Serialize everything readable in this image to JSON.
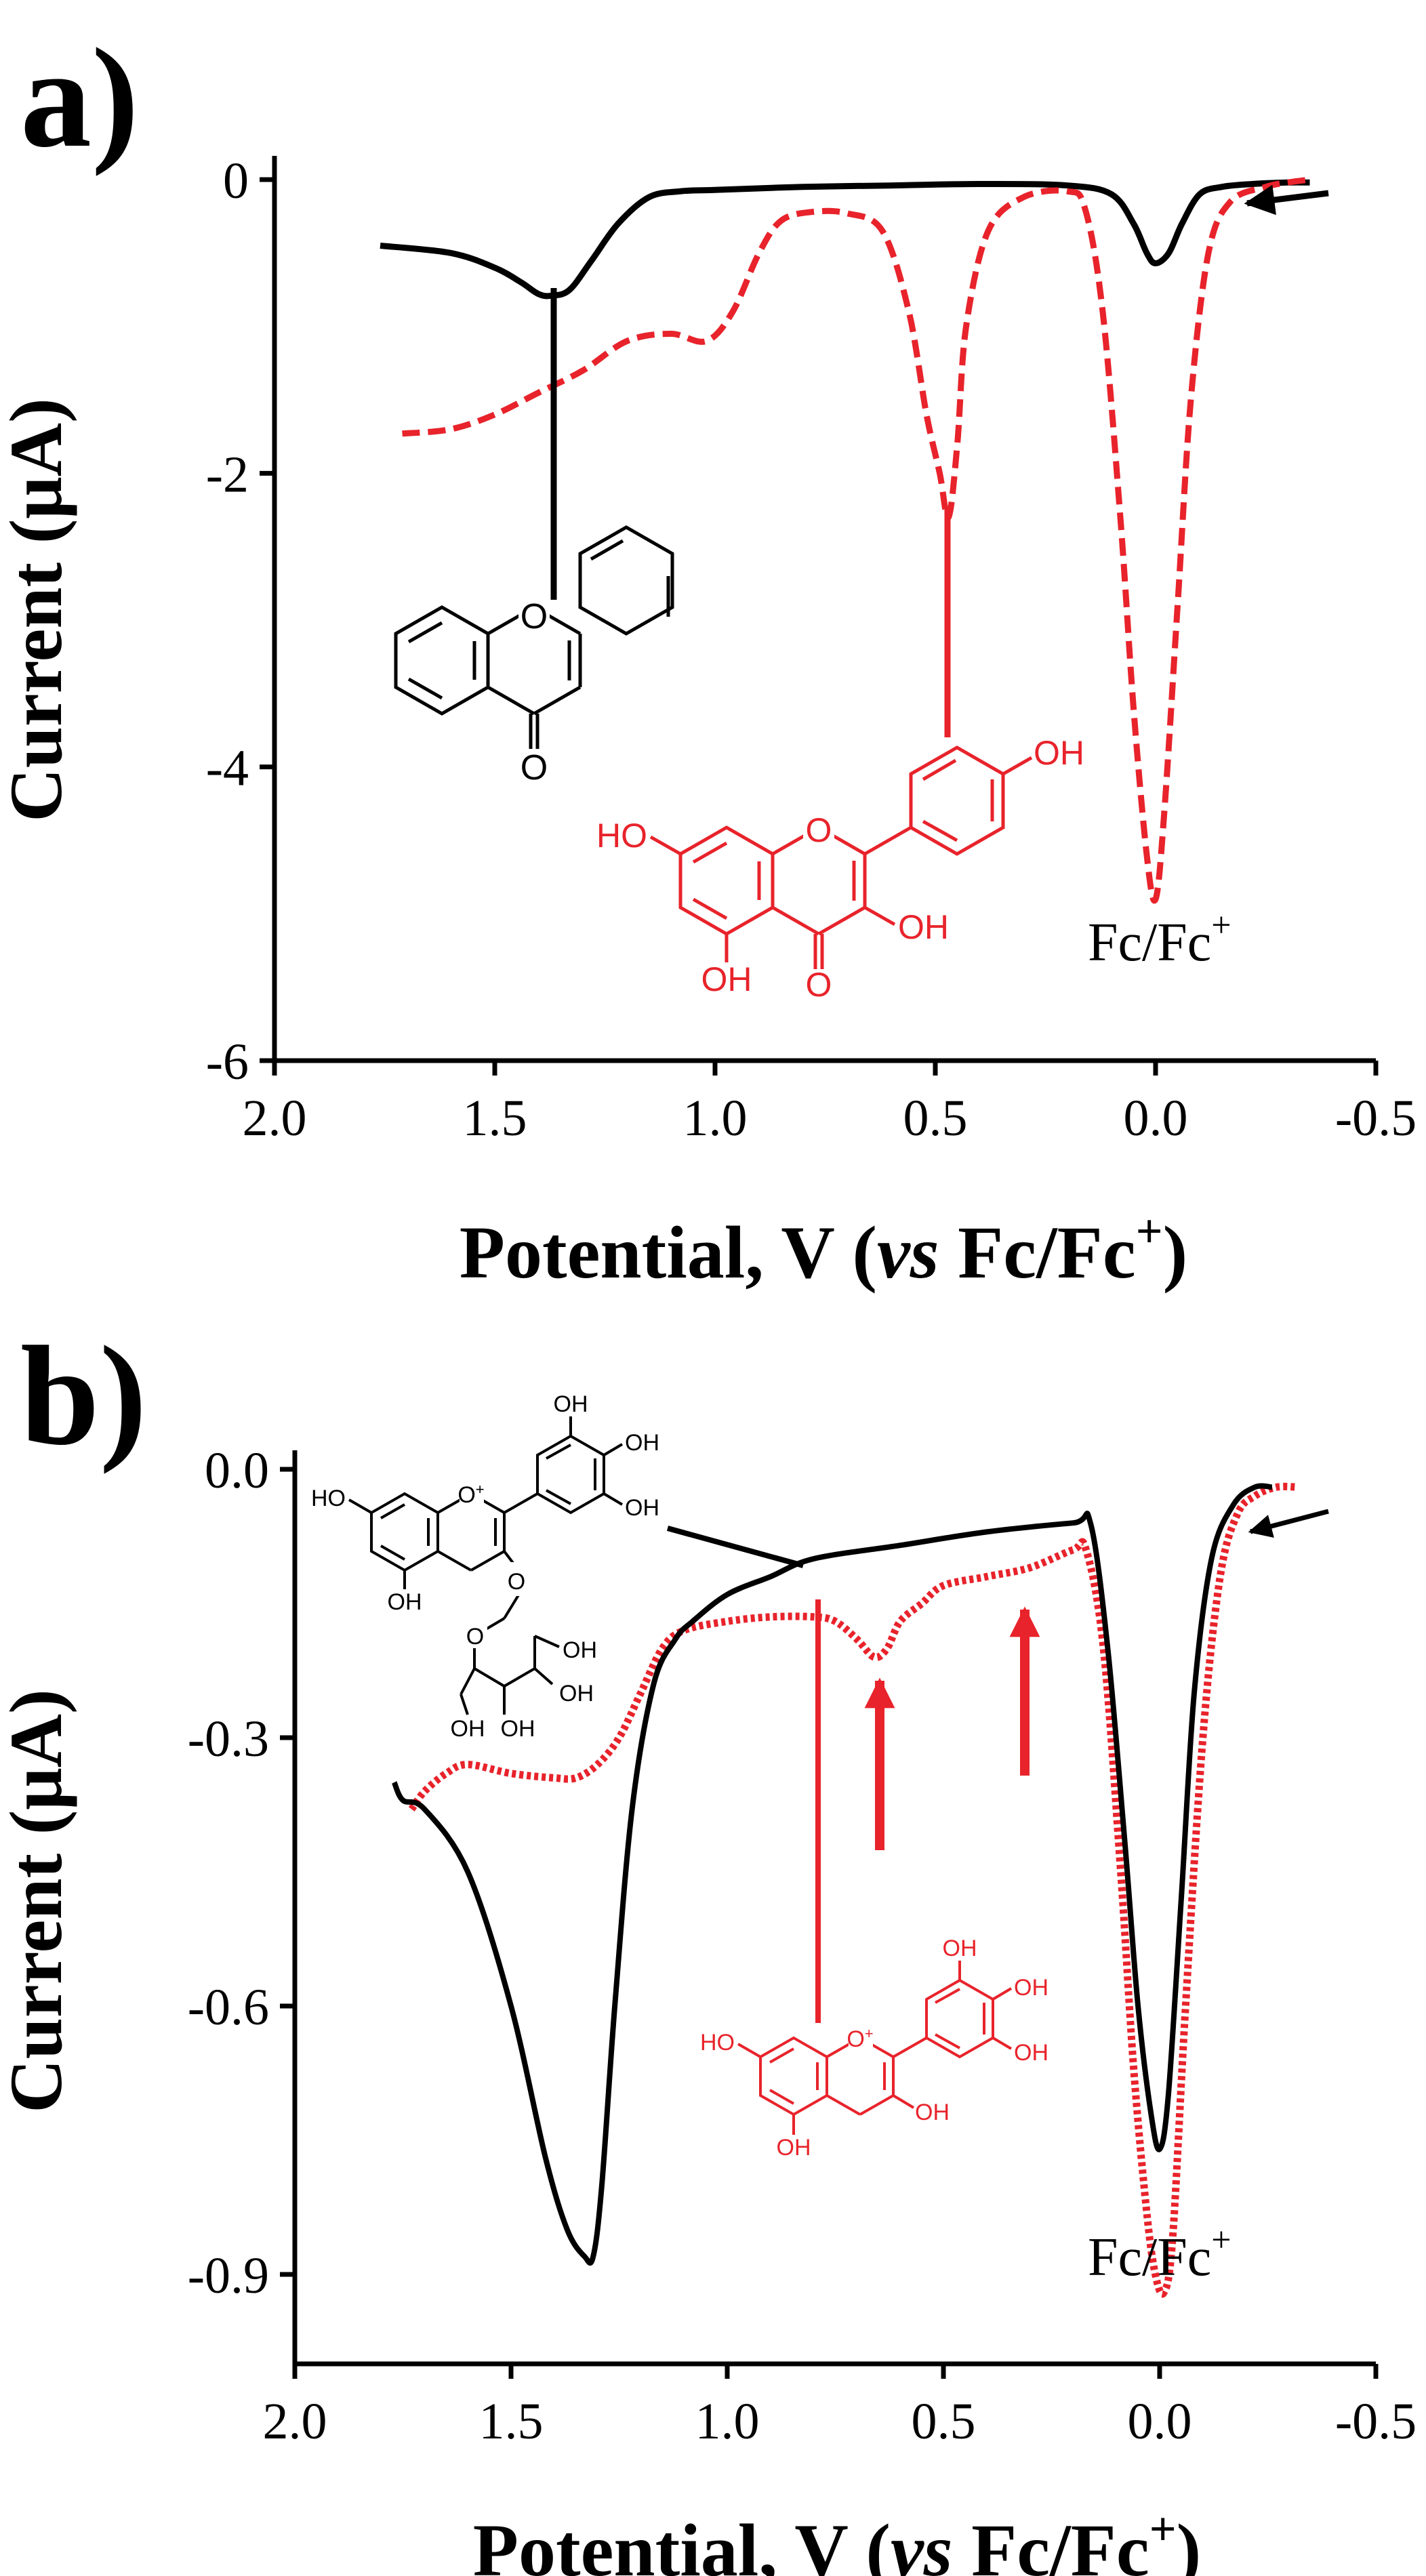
{
  "colors": {
    "black": "#000000",
    "red": "#e8232b"
  },
  "chart_data": [
    {
      "type": "line",
      "panel_label": "a)",
      "xlabel_main": "Potential, V (",
      "xlabel_italic": "vs",
      "xlabel_tail": " Fc/Fc",
      "xlabel_sup": "+",
      "xlabel_close": ")",
      "ylabel": "Current (μA)",
      "xlim": [
        2.0,
        -0.5
      ],
      "ylim": [
        -6,
        0
      ],
      "x_ticks": [
        2.0,
        1.5,
        1.0,
        0.5,
        0.0,
        -0.5
      ],
      "x_tick_labels": [
        "2.0",
        "1.5",
        "1.0",
        "0.5",
        "0.0",
        "-0.5"
      ],
      "y_ticks": [
        0,
        -2,
        -4,
        -6
      ],
      "y_tick_labels": [
        "0",
        "-2",
        "-4",
        "-6"
      ],
      "annotation": "Fc/Fc",
      "annotation_sup": "+",
      "series": [
        {
          "style": "solid",
          "color": "#000000",
          "x": [
            1.76,
            1.6,
            1.5,
            1.44,
            1.4,
            1.37,
            1.33,
            1.28,
            1.22,
            1.15,
            1.08,
            1.0,
            0.8,
            0.6,
            0.4,
            0.2,
            0.1,
            0.05,
            0.02,
            0.0,
            -0.03,
            -0.06,
            -0.1,
            -0.15,
            -0.22,
            -0.3,
            -0.35
          ],
          "y": [
            -0.45,
            -0.5,
            -0.6,
            -0.7,
            -0.78,
            -0.79,
            -0.75,
            -0.55,
            -0.3,
            -0.12,
            -0.08,
            -0.07,
            -0.05,
            -0.04,
            -0.03,
            -0.04,
            -0.1,
            -0.3,
            -0.5,
            -0.57,
            -0.5,
            -0.3,
            -0.1,
            -0.05,
            -0.03,
            -0.02,
            -0.02
          ]
        },
        {
          "style": "dashed",
          "color": "#e8232b",
          "x": [
            1.71,
            1.6,
            1.5,
            1.4,
            1.3,
            1.2,
            1.1,
            1.02,
            0.96,
            0.9,
            0.85,
            0.78,
            0.7,
            0.62,
            0.56,
            0.52,
            0.49,
            0.47,
            0.45,
            0.43,
            0.38,
            0.3,
            0.2,
            0.16,
            0.12,
            0.08,
            0.05,
            0.02,
            0.0,
            -0.02,
            -0.05,
            -0.08,
            -0.12,
            -0.17,
            -0.25,
            -0.3,
            -0.35
          ],
          "y": [
            -1.73,
            -1.7,
            -1.6,
            -1.45,
            -1.3,
            -1.1,
            -1.05,
            -1.1,
            -0.9,
            -0.5,
            -0.28,
            -0.22,
            -0.23,
            -0.35,
            -0.9,
            -1.6,
            -2.0,
            -2.3,
            -1.8,
            -1.0,
            -0.35,
            -0.12,
            -0.08,
            -0.2,
            -0.9,
            -2.3,
            -3.6,
            -4.6,
            -4.9,
            -4.3,
            -2.9,
            -1.5,
            -0.5,
            -0.15,
            -0.05,
            -0.02,
            0.0
          ]
        }
      ]
    },
    {
      "type": "line",
      "panel_label": "b)",
      "xlabel_main": "Potential, V (",
      "xlabel_italic": "vs",
      "xlabel_tail": " Fc/Fc",
      "xlabel_sup": "+",
      "xlabel_close": ")",
      "ylabel": "Current (μA)",
      "xlim": [
        2.0,
        -0.5
      ],
      "ylim": [
        -1.0,
        0.0
      ],
      "x_ticks": [
        2.0,
        1.5,
        1.0,
        0.5,
        0.0,
        -0.5
      ],
      "x_tick_labels": [
        "2.0",
        "1.5",
        "1.0",
        "0.5",
        "0.0",
        "-0.5"
      ],
      "y_ticks": [
        0.0,
        -0.3,
        -0.6,
        -0.9
      ],
      "y_tick_labels": [
        "0.0",
        "-0.3",
        "-0.6",
        "-0.9"
      ],
      "annotation": "Fc/Fc",
      "annotation_sup": "+",
      "series": [
        {
          "style": "solid",
          "color": "#000000",
          "x": [
            1.77,
            1.75,
            1.7,
            1.6,
            1.5,
            1.42,
            1.37,
            1.33,
            1.31,
            1.29,
            1.26,
            1.22,
            1.17,
            1.12,
            1.08,
            1.0,
            0.9,
            0.8,
            0.6,
            0.4,
            0.2,
            0.16,
            0.12,
            0.08,
            0.05,
            0.02,
            0.0,
            -0.02,
            -0.05,
            -0.08,
            -0.12,
            -0.17,
            -0.22,
            -0.26
          ],
          "y": [
            -0.35,
            -0.37,
            -0.38,
            -0.45,
            -0.6,
            -0.77,
            -0.85,
            -0.88,
            -0.88,
            -0.8,
            -0.6,
            -0.38,
            -0.24,
            -0.19,
            -0.17,
            -0.14,
            -0.12,
            -0.1,
            -0.085,
            -0.07,
            -0.06,
            -0.06,
            -0.2,
            -0.42,
            -0.6,
            -0.72,
            -0.76,
            -0.7,
            -0.48,
            -0.25,
            -0.1,
            -0.04,
            -0.02,
            -0.02
          ]
        },
        {
          "style": "dotted",
          "color": "#e8232b",
          "x": [
            1.73,
            1.7,
            1.65,
            1.6,
            1.5,
            1.4,
            1.35,
            1.3,
            1.25,
            1.2,
            1.15,
            1.1,
            1.0,
            0.9,
            0.8,
            0.75,
            0.7,
            0.66,
            0.63,
            0.6,
            0.55,
            0.5,
            0.4,
            0.3,
            0.2,
            0.17,
            0.13,
            0.09,
            0.06,
            0.03,
            0.01,
            -0.01,
            -0.03,
            -0.06,
            -0.1,
            -0.14,
            -0.18,
            -0.22,
            -0.27,
            -0.32
          ],
          "y": [
            -0.38,
            -0.36,
            -0.34,
            -0.33,
            -0.34,
            -0.345,
            -0.345,
            -0.33,
            -0.3,
            -0.25,
            -0.2,
            -0.18,
            -0.17,
            -0.165,
            -0.165,
            -0.17,
            -0.19,
            -0.21,
            -0.2,
            -0.17,
            -0.15,
            -0.13,
            -0.12,
            -0.11,
            -0.09,
            -0.09,
            -0.2,
            -0.45,
            -0.67,
            -0.83,
            -0.9,
            -0.92,
            -0.86,
            -0.6,
            -0.3,
            -0.12,
            -0.05,
            -0.03,
            -0.02,
            -0.02
          ]
        }
      ]
    }
  ],
  "structures": {
    "flavone": {
      "ring_o": "O",
      "carbonyl_o": "O"
    },
    "kaempferol": {
      "ring_o": "O",
      "carbonyl_o": "O",
      "oh_7": "HO",
      "oh_5": "OH",
      "oh_3": "OH",
      "oh_4p": "OH"
    },
    "glucoside": {
      "ring_o": "O",
      "ring_o_charge": "+",
      "oh_7": "HO",
      "oh_5": "OH",
      "oh_3p": "OH",
      "oh_4p": "OH",
      "oh_5p": "OH",
      "glyc_o": "O",
      "sugar_o": "O",
      "sugar_oh_6": "OH",
      "sugar_oh_4": "OH",
      "sugar_oh_3": "OH",
      "sugar_oh_2": "OH"
    },
    "delphinidin": {
      "ring_o": "O",
      "ring_o_charge": "+",
      "oh_7": "HO",
      "oh_5": "OH",
      "oh_3": "OH",
      "oh_3p": "OH",
      "oh_4p": "OH",
      "oh_5p": "OH"
    }
  }
}
